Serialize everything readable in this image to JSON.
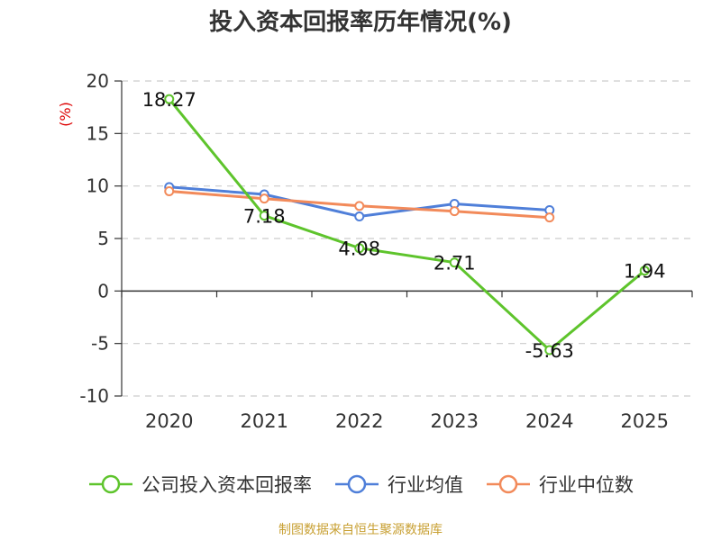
{
  "chart_data": {
    "type": "line",
    "title": "投入资本回报率历年情况(%)",
    "ylabel": "(%)",
    "xlabel": "",
    "categories": [
      "2020",
      "2021",
      "2022",
      "2023",
      "2024",
      "2025"
    ],
    "ylim": [
      -10,
      20
    ],
    "yticks": [
      -10,
      -5,
      0,
      5,
      10,
      15,
      20
    ],
    "grid": true,
    "legend_position": "bottom",
    "series": [
      {
        "name": "公司投入资本回报率",
        "color": "#5ec42c",
        "values": [
          18.27,
          7.18,
          4.08,
          2.71,
          -5.63,
          1.94
        ],
        "labels": [
          "18.27",
          "7.18",
          "4.08",
          "2.71",
          "-5.63",
          "1.94"
        ]
      },
      {
        "name": "行业均值",
        "color": "#4f7fd9",
        "values": [
          9.9,
          9.2,
          7.1,
          8.3,
          7.7,
          null
        ]
      },
      {
        "name": "行业中位数",
        "color": "#f28a5a",
        "values": [
          9.5,
          8.8,
          8.1,
          7.6,
          7.0,
          null
        ]
      }
    ]
  },
  "source": "制图数据来自恒生聚源数据库"
}
